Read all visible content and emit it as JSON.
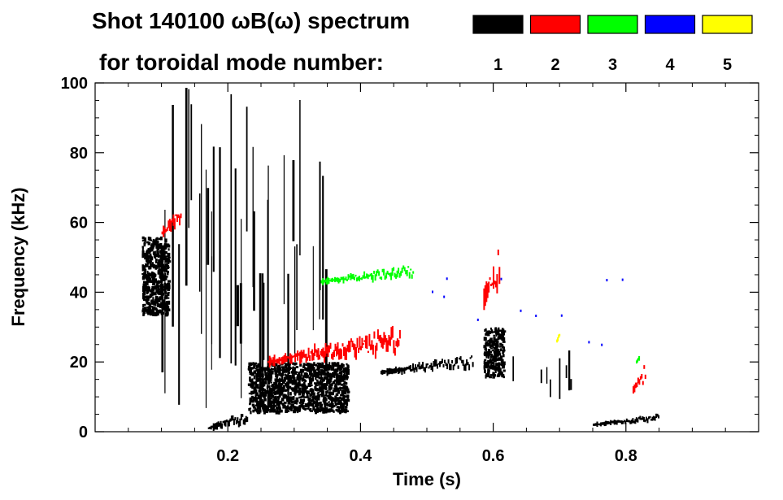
{
  "chart_data": {
    "type": "heatmap",
    "title_line1": "Shot 140100 ωB(ω) spectrum",
    "title_line2": "for toroidal mode number:",
    "xlabel": "Time (s)",
    "ylabel": "Frequency (kHz)",
    "xlim": [
      0.0,
      1.0
    ],
    "ylim": [
      0,
      100
    ],
    "xticks": [
      0.2,
      0.4,
      0.6,
      0.8
    ],
    "xtick_labels": [
      "0.2",
      "0.4",
      "0.6",
      "0.8"
    ],
    "yticks": [
      0,
      20,
      40,
      60,
      80,
      100
    ],
    "ytick_labels": [
      "0",
      "20",
      "40",
      "60",
      "80",
      "100"
    ],
    "legend": [
      {
        "label": "1",
        "color": "#000000"
      },
      {
        "label": "2",
        "color": "#ff0000"
      },
      {
        "label": "3",
        "color": "#00ff00"
      },
      {
        "label": "4",
        "color": "#0000ff"
      },
      {
        "label": "5",
        "color": "#ffff00"
      }
    ],
    "features": [
      {
        "n": 1,
        "kind": "blob",
        "t": [
          0.07,
          0.11
        ],
        "f": [
          34,
          56
        ]
      },
      {
        "n": 1,
        "kind": "blob",
        "t": [
          0.23,
          0.38
        ],
        "f": [
          6,
          20
        ]
      },
      {
        "n": 1,
        "kind": "band",
        "t": [
          0.17,
          0.23
        ],
        "f": [
          1,
          6
        ]
      },
      {
        "n": 1,
        "kind": "vlines",
        "t": [
          0.1,
          0.35
        ],
        "f": [
          3,
          100
        ],
        "count": 40
      },
      {
        "n": 1,
        "kind": "band",
        "t": [
          0.43,
          0.57
        ],
        "f": [
          17,
          22
        ]
      },
      {
        "n": 1,
        "kind": "blob",
        "t": [
          0.585,
          0.615
        ],
        "f": [
          16,
          30
        ]
      },
      {
        "n": 1,
        "kind": "vlines",
        "t": [
          0.62,
          0.72
        ],
        "f": [
          8,
          25
        ],
        "count": 8
      },
      {
        "n": 1,
        "kind": "band",
        "t": [
          0.75,
          0.85
        ],
        "f": [
          2,
          5
        ]
      },
      {
        "n": 2,
        "kind": "band",
        "t": [
          0.1,
          0.13
        ],
        "f": [
          57,
          66
        ]
      },
      {
        "n": 2,
        "kind": "band",
        "t": [
          0.26,
          0.46
        ],
        "f": [
          20,
          30
        ]
      },
      {
        "n": 2,
        "kind": "band",
        "t": [
          0.81,
          0.83
        ],
        "f": [
          12,
          20
        ]
      },
      {
        "n": 2,
        "kind": "band",
        "t": [
          0.585,
          0.61
        ],
        "f": [
          38,
          55
        ]
      },
      {
        "n": 3,
        "kind": "band",
        "t": [
          0.34,
          0.48
        ],
        "f": [
          43,
          48
        ]
      },
      {
        "n": 3,
        "kind": "band",
        "t": [
          0.815,
          0.82
        ],
        "f": [
          20,
          24
        ]
      },
      {
        "n": 4,
        "kind": "dots",
        "t": [
          0.5,
          0.82
        ],
        "f": [
          25,
          45
        ]
      },
      {
        "n": 5,
        "kind": "band",
        "t": [
          0.695,
          0.7
        ],
        "f": [
          26,
          30
        ]
      }
    ]
  }
}
